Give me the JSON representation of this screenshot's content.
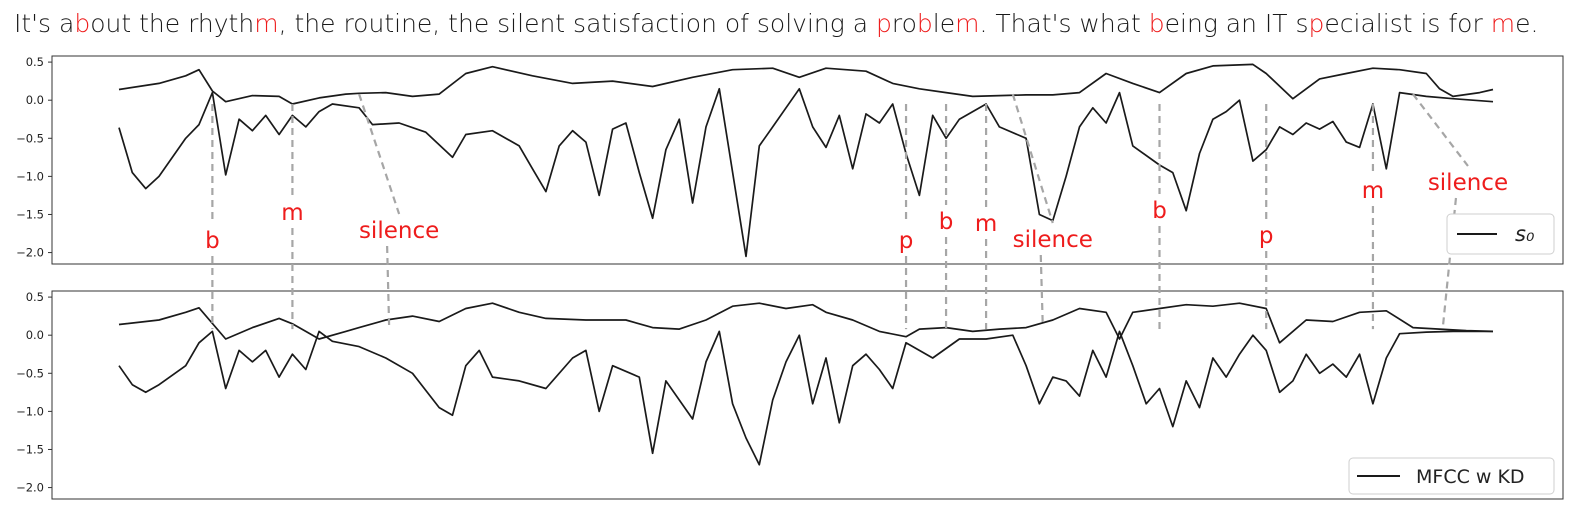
{
  "sentence": [
    {
      "t": "It's a",
      "hl": false
    },
    {
      "t": "b",
      "hl": true
    },
    {
      "t": "out the rhyth",
      "hl": false
    },
    {
      "t": "m",
      "hl": true
    },
    {
      "t": ", the routine, the silent satisfaction of solving a ",
      "hl": false
    },
    {
      "t": "p",
      "hl": true
    },
    {
      "t": "ro",
      "hl": false
    },
    {
      "t": "b",
      "hl": true
    },
    {
      "t": "le",
      "hl": false
    },
    {
      "t": "m",
      "hl": true
    },
    {
      "t": ". That's what ",
      "hl": false
    },
    {
      "t": "b",
      "hl": true
    },
    {
      "t": "eing an IT s",
      "hl": false
    },
    {
      "t": "p",
      "hl": true
    },
    {
      "t": "ecialist is for ",
      "hl": false
    },
    {
      "t": "m",
      "hl": true
    },
    {
      "t": "e.",
      "hl": false
    }
  ],
  "colors": {
    "highlight": "#ee1c1c",
    "line": "#1a1a1a",
    "connector": "#a6a6a6"
  },
  "chart_data": [
    {
      "type": "line",
      "legend": "s₀",
      "legend_position": "bottom-right",
      "ylim": [
        -2.15,
        0.58
      ],
      "yticks": [
        0.5,
        0.0,
        -0.5,
        -1.0,
        -1.5,
        -2.0
      ],
      "ytick_labels": [
        "0.5",
        "0.0",
        "−0.5",
        "−1.0",
        "−1.5",
        "−2.0"
      ],
      "xlim": [
        0,
        100
      ],
      "grid": false,
      "upper_curve": [
        [
          0,
          0.14
        ],
        [
          3,
          0.22
        ],
        [
          5,
          0.32
        ],
        [
          6,
          0.4
        ],
        [
          7,
          0.12
        ],
        [
          8,
          -0.02
        ],
        [
          10,
          0.06
        ],
        [
          12,
          0.05
        ],
        [
          13,
          -0.05
        ],
        [
          15,
          0.03
        ],
        [
          17,
          0.08
        ],
        [
          18,
          0.09
        ],
        [
          20,
          0.1
        ],
        [
          22,
          0.05
        ],
        [
          24,
          0.08
        ],
        [
          26,
          0.35
        ],
        [
          28,
          0.44
        ],
        [
          31,
          0.32
        ],
        [
          34,
          0.22
        ],
        [
          37,
          0.25
        ],
        [
          40,
          0.18
        ],
        [
          43,
          0.3
        ],
        [
          46,
          0.4
        ],
        [
          49,
          0.42
        ],
        [
          51,
          0.3
        ],
        [
          53,
          0.42
        ],
        [
          56,
          0.38
        ],
        [
          58,
          0.22
        ],
        [
          60,
          0.15
        ],
        [
          62,
          0.1
        ],
        [
          64,
          0.05
        ],
        [
          66,
          0.06
        ],
        [
          68,
          0.07
        ],
        [
          70,
          0.07
        ],
        [
          72,
          0.1
        ],
        [
          74,
          0.35
        ],
        [
          76,
          0.22
        ],
        [
          78,
          0.1
        ],
        [
          80,
          0.35
        ],
        [
          82,
          0.45
        ],
        [
          85,
          0.47
        ],
        [
          86,
          0.35
        ],
        [
          88,
          0.02
        ],
        [
          90,
          0.28
        ],
        [
          92,
          0.35
        ],
        [
          94,
          0.42
        ],
        [
          96,
          0.4
        ],
        [
          98,
          0.35
        ],
        [
          99,
          0.15
        ],
        [
          100,
          0.05
        ],
        [
          102,
          0.1
        ],
        [
          103,
          0.14
        ]
      ],
      "lower_curve": [
        [
          0,
          -0.36
        ],
        [
          1,
          -0.95
        ],
        [
          2,
          -1.16
        ],
        [
          3,
          -1.0
        ],
        [
          5,
          -0.5
        ],
        [
          6,
          -0.32
        ],
        [
          7,
          0.1
        ],
        [
          8,
          -0.98
        ],
        [
          9,
          -0.25
        ],
        [
          10,
          -0.4
        ],
        [
          11,
          -0.2
        ],
        [
          12,
          -0.45
        ],
        [
          13,
          -0.2
        ],
        [
          14,
          -0.35
        ],
        [
          15,
          -0.15
        ],
        [
          16,
          -0.05
        ],
        [
          18,
          -0.1
        ],
        [
          19,
          -0.32
        ],
        [
          21,
          -0.3
        ],
        [
          23,
          -0.42
        ],
        [
          25,
          -0.75
        ],
        [
          26,
          -0.45
        ],
        [
          28,
          -0.4
        ],
        [
          30,
          -0.6
        ],
        [
          31,
          -0.9
        ],
        [
          32,
          -1.2
        ],
        [
          33,
          -0.6
        ],
        [
          34,
          -0.4
        ],
        [
          35,
          -0.55
        ],
        [
          36,
          -1.25
        ],
        [
          37,
          -0.38
        ],
        [
          38,
          -0.3
        ],
        [
          39,
          -0.95
        ],
        [
          40,
          -1.55
        ],
        [
          41,
          -0.65
        ],
        [
          42,
          -0.25
        ],
        [
          43,
          -1.35
        ],
        [
          44,
          -0.35
        ],
        [
          45,
          0.15
        ],
        [
          47,
          -2.05
        ],
        [
          48,
          -0.6
        ],
        [
          49,
          -0.35
        ],
        [
          51,
          0.15
        ],
        [
          52,
          -0.35
        ],
        [
          53,
          -0.62
        ],
        [
          54,
          -0.2
        ],
        [
          55,
          -0.9
        ],
        [
          56,
          -0.18
        ],
        [
          57,
          -0.3
        ],
        [
          58,
          -0.05
        ],
        [
          59,
          -0.7
        ],
        [
          60,
          -1.25
        ],
        [
          61,
          -0.2
        ],
        [
          62,
          -0.5
        ],
        [
          63,
          -0.25
        ],
        [
          65,
          -0.05
        ],
        [
          66,
          -0.35
        ],
        [
          68,
          -0.5
        ],
        [
          69,
          -1.5
        ],
        [
          70,
          -1.58
        ],
        [
          71,
          -1.0
        ],
        [
          72,
          -0.35
        ],
        [
          73,
          -0.1
        ],
        [
          74,
          -0.3
        ],
        [
          75,
          0.1
        ],
        [
          76,
          -0.6
        ],
        [
          78,
          -0.85
        ],
        [
          79,
          -0.95
        ],
        [
          80,
          -1.45
        ],
        [
          81,
          -0.7
        ],
        [
          82,
          -0.25
        ],
        [
          83,
          -0.15
        ],
        [
          84,
          0.0
        ],
        [
          85,
          -0.8
        ],
        [
          86,
          -0.65
        ],
        [
          87,
          -0.35
        ],
        [
          88,
          -0.45
        ],
        [
          89,
          -0.3
        ],
        [
          90,
          -0.38
        ],
        [
          91,
          -0.28
        ],
        [
          92,
          -0.55
        ],
        [
          93,
          -0.62
        ],
        [
          94,
          -0.05
        ],
        [
          95,
          -0.9
        ],
        [
          96,
          0.1
        ],
        [
          98,
          0.05
        ],
        [
          100,
          0.02
        ],
        [
          103,
          -0.02
        ]
      ]
    },
    {
      "type": "line",
      "legend": "MFCC w KD",
      "legend_position": "bottom-right",
      "ylim": [
        -2.15,
        0.58
      ],
      "yticks": [
        0.5,
        0.0,
        -0.5,
        -1.0,
        -1.5,
        -2.0
      ],
      "ytick_labels": [
        "0.5",
        "0.0",
        "−0.5",
        "−1.0",
        "−1.5",
        "−2.0"
      ],
      "xlim": [
        0,
        100
      ],
      "grid": false,
      "upper_curve": [
        [
          0,
          0.14
        ],
        [
          3,
          0.2
        ],
        [
          5,
          0.3
        ],
        [
          6,
          0.36
        ],
        [
          8,
          -0.05
        ],
        [
          10,
          0.1
        ],
        [
          12,
          0.22
        ],
        [
          13,
          0.15
        ],
        [
          14,
          0.05
        ],
        [
          15,
          -0.05
        ],
        [
          17,
          0.05
        ],
        [
          18,
          0.1
        ],
        [
          20,
          0.2
        ],
        [
          22,
          0.25
        ],
        [
          24,
          0.18
        ],
        [
          26,
          0.35
        ],
        [
          28,
          0.42
        ],
        [
          30,
          0.3
        ],
        [
          32,
          0.22
        ],
        [
          35,
          0.2
        ],
        [
          38,
          0.2
        ],
        [
          40,
          0.1
        ],
        [
          42,
          0.08
        ],
        [
          44,
          0.2
        ],
        [
          46,
          0.38
        ],
        [
          48,
          0.42
        ],
        [
          50,
          0.35
        ],
        [
          52,
          0.4
        ],
        [
          53,
          0.3
        ],
        [
          55,
          0.2
        ],
        [
          57,
          0.05
        ],
        [
          59,
          -0.02
        ],
        [
          60,
          0.08
        ],
        [
          62,
          0.1
        ],
        [
          64,
          0.05
        ],
        [
          66,
          0.08
        ],
        [
          68,
          0.1
        ],
        [
          70,
          0.2
        ],
        [
          72,
          0.35
        ],
        [
          74,
          0.3
        ],
        [
          75,
          -0.05
        ],
        [
          76,
          0.3
        ],
        [
          78,
          0.35
        ],
        [
          80,
          0.4
        ],
        [
          82,
          0.38
        ],
        [
          84,
          0.42
        ],
        [
          86,
          0.35
        ],
        [
          87,
          -0.1
        ],
        [
          89,
          0.2
        ],
        [
          91,
          0.18
        ],
        [
          93,
          0.3
        ],
        [
          95,
          0.32
        ],
        [
          97,
          0.1
        ],
        [
          99,
          0.08
        ],
        [
          101,
          0.06
        ],
        [
          103,
          0.05
        ]
      ],
      "lower_curve": [
        [
          0,
          -0.4
        ],
        [
          1,
          -0.65
        ],
        [
          2,
          -0.75
        ],
        [
          3,
          -0.65
        ],
        [
          5,
          -0.4
        ],
        [
          6,
          -0.1
        ],
        [
          7,
          0.05
        ],
        [
          8,
          -0.7
        ],
        [
          9,
          -0.2
        ],
        [
          10,
          -0.35
        ],
        [
          11,
          -0.2
        ],
        [
          12,
          -0.55
        ],
        [
          13,
          -0.25
        ],
        [
          14,
          -0.45
        ],
        [
          15,
          0.05
        ],
        [
          16,
          -0.08
        ],
        [
          18,
          -0.15
        ],
        [
          20,
          -0.3
        ],
        [
          22,
          -0.5
        ],
        [
          24,
          -0.95
        ],
        [
          25,
          -1.05
        ],
        [
          26,
          -0.4
        ],
        [
          27,
          -0.2
        ],
        [
          28,
          -0.55
        ],
        [
          30,
          -0.6
        ],
        [
          32,
          -0.7
        ],
        [
          34,
          -0.3
        ],
        [
          35,
          -0.2
        ],
        [
          36,
          -1.0
        ],
        [
          37,
          -0.4
        ],
        [
          39,
          -0.55
        ],
        [
          40,
          -1.55
        ],
        [
          41,
          -0.6
        ],
        [
          43,
          -1.1
        ],
        [
          44,
          -0.35
        ],
        [
          45,
          0.05
        ],
        [
          46,
          -0.9
        ],
        [
          47,
          -1.35
        ],
        [
          48,
          -1.7
        ],
        [
          49,
          -0.85
        ],
        [
          50,
          -0.35
        ],
        [
          51,
          0.0
        ],
        [
          52,
          -0.9
        ],
        [
          53,
          -0.3
        ],
        [
          54,
          -1.15
        ],
        [
          55,
          -0.4
        ],
        [
          56,
          -0.25
        ],
        [
          57,
          -0.45
        ],
        [
          58,
          -0.7
        ],
        [
          59,
          -0.1
        ],
        [
          61,
          -0.3
        ],
        [
          63,
          -0.05
        ],
        [
          65,
          -0.05
        ],
        [
          67,
          0.0
        ],
        [
          68,
          -0.4
        ],
        [
          69,
          -0.9
        ],
        [
          70,
          -0.55
        ],
        [
          71,
          -0.6
        ],
        [
          72,
          -0.8
        ],
        [
          73,
          -0.2
        ],
        [
          74,
          -0.55
        ],
        [
          75,
          0.05
        ],
        [
          76,
          -0.4
        ],
        [
          77,
          -0.9
        ],
        [
          78,
          -0.7
        ],
        [
          79,
          -1.2
        ],
        [
          80,
          -0.6
        ],
        [
          81,
          -0.95
        ],
        [
          82,
          -0.3
        ],
        [
          83,
          -0.55
        ],
        [
          84,
          -0.25
        ],
        [
          85,
          0.0
        ],
        [
          86,
          -0.2
        ],
        [
          87,
          -0.75
        ],
        [
          88,
          -0.6
        ],
        [
          89,
          -0.25
        ],
        [
          90,
          -0.5
        ],
        [
          91,
          -0.38
        ],
        [
          92,
          -0.55
        ],
        [
          93,
          -0.25
        ],
        [
          94,
          -0.9
        ],
        [
          95,
          -0.3
        ],
        [
          96,
          0.02
        ],
        [
          98,
          0.04
        ],
        [
          100,
          0.05
        ],
        [
          103,
          0.05
        ]
      ]
    }
  ],
  "annotations": [
    {
      "label": "b",
      "x": 7,
      "label_panel_y": 0
    },
    {
      "label": "m",
      "x": 13,
      "label_panel_y": 0
    },
    {
      "label": "silence",
      "x": 18,
      "label_panel_y": 0
    },
    {
      "label": "p",
      "x": 59,
      "label_panel_y": 0
    },
    {
      "label": "b",
      "x": 62,
      "label_panel_y": 0
    },
    {
      "label": "m",
      "x": 65,
      "label_panel_y": 0
    },
    {
      "label": "silence",
      "x": 67,
      "label_panel_y": 0
    },
    {
      "label": "b",
      "x": 78,
      "label_panel_y": 0
    },
    {
      "label": "p",
      "x": 86,
      "label_panel_y": 0
    },
    {
      "label": "m",
      "x": 94,
      "label_panel_y": 0
    },
    {
      "label": "silence",
      "x": 97,
      "label_panel_y": 0
    }
  ]
}
